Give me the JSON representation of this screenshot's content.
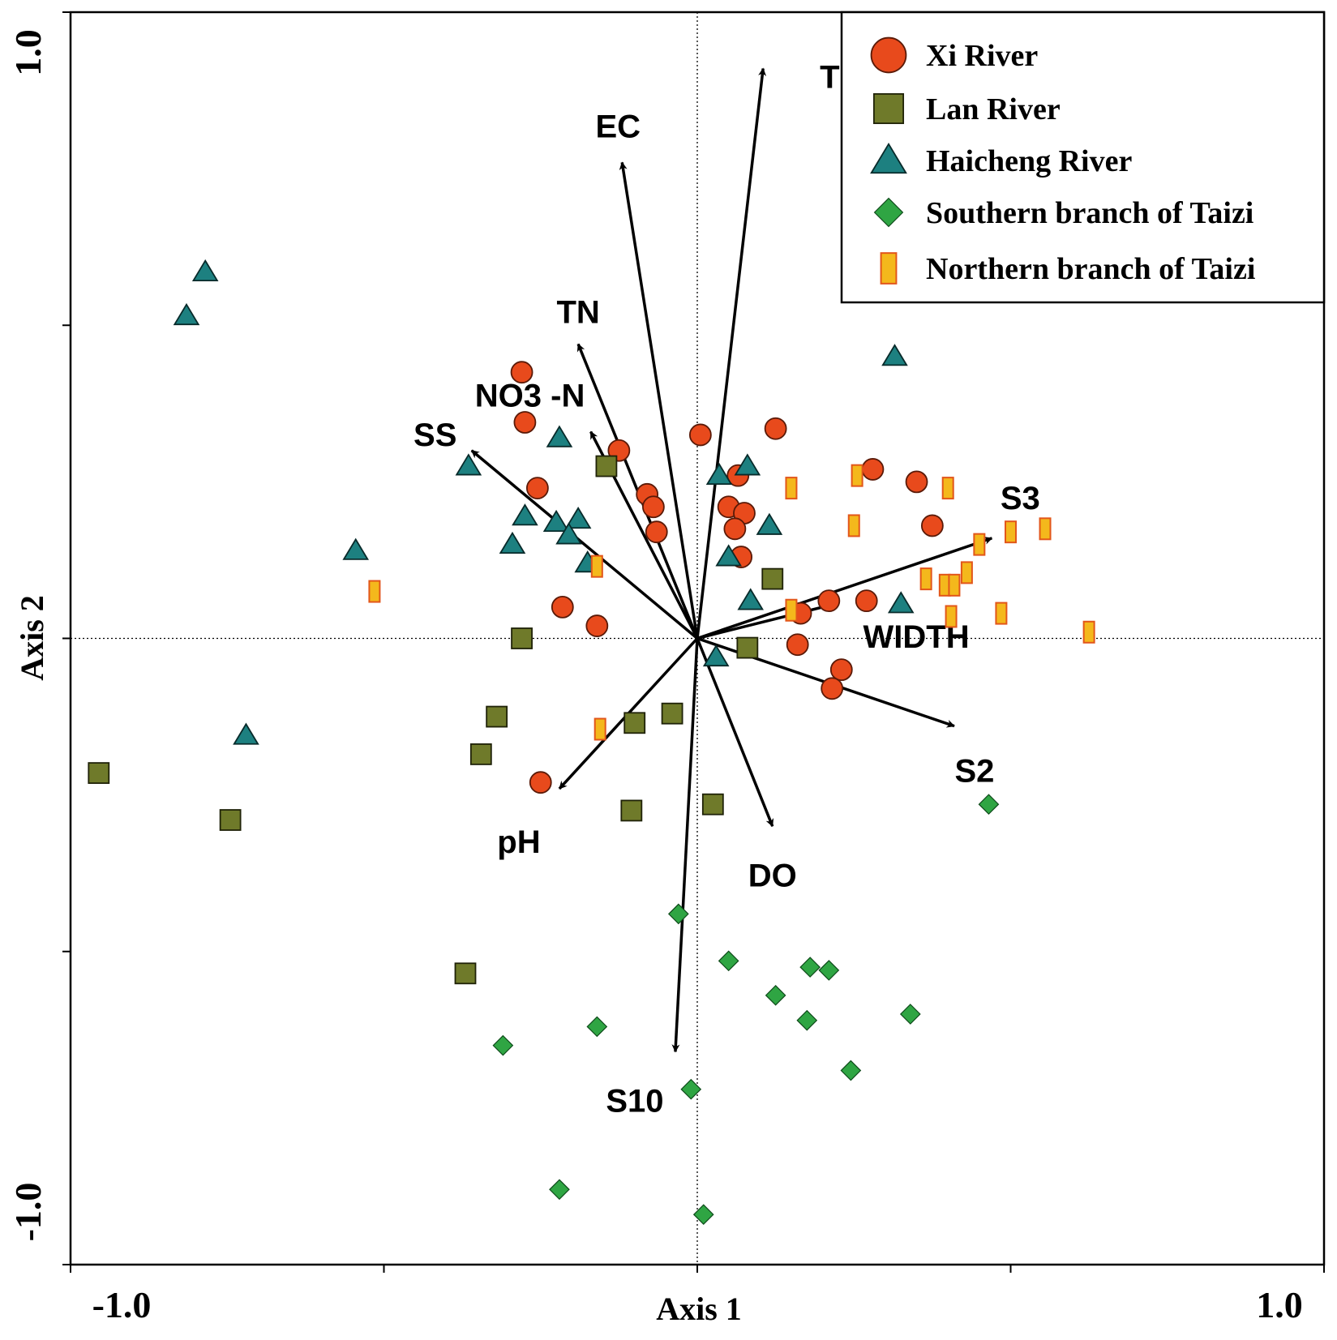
{
  "chart_data": {
    "type": "scatter",
    "subtype": "ordination biplot",
    "xlabel": "Axis 1",
    "ylabel": "Axis 2",
    "xlim": [
      -1.0,
      1.0
    ],
    "ylim": [
      -1.0,
      1.0
    ],
    "xtick_labels": [
      {
        "value": -1.0,
        "label": "-1.0"
      },
      {
        "value": 1.0,
        "label": "1.0"
      }
    ],
    "ytick_labels": [
      {
        "value": 1.0,
        "label": "1.0"
      },
      {
        "value": -1.0,
        "label": "-1.0"
      }
    ],
    "minor_ticks": [
      -0.5,
      0.5
    ],
    "zero_lines": true,
    "legend_position": "top-right",
    "colors": {
      "xi": "#e84a1c",
      "lan": "#6f7a2a",
      "haicheng": "#1d8080",
      "southern": "#2fa543",
      "northern": "#f4b81c",
      "northern_border": "#e2561a",
      "arrow": "#000000"
    },
    "vectors": [
      {
        "name": "T",
        "x": 0.105,
        "y": 0.91
      },
      {
        "name": "EC",
        "x": -0.12,
        "y": 0.76
      },
      {
        "name": "TN",
        "x": -0.19,
        "y": 0.47
      },
      {
        "name": "NO3 -N",
        "x": -0.17,
        "y": 0.33
      },
      {
        "name": "SS",
        "x": -0.36,
        "y": 0.3
      },
      {
        "name": "S3",
        "x": 0.47,
        "y": 0.16
      },
      {
        "name": "WIDTH",
        "x": 0.22,
        "y": 0.055
      },
      {
        "name": "S2",
        "x": 0.41,
        "y": -0.14
      },
      {
        "name": "DO",
        "x": 0.12,
        "y": -0.3
      },
      {
        "name": "pH",
        "x": -0.22,
        "y": -0.24
      },
      {
        "name": "S10",
        "x": -0.035,
        "y": -0.66
      }
    ],
    "series": [
      {
        "name": "Xi River",
        "marker": "circle",
        "points": [
          [
            -0.28,
            0.425
          ],
          [
            -0.275,
            0.345
          ],
          [
            -0.255,
            0.24
          ],
          [
            -0.215,
            0.05
          ],
          [
            -0.16,
            0.02
          ],
          [
            -0.125,
            0.3
          ],
          [
            -0.08,
            0.23
          ],
          [
            -0.07,
            0.21
          ],
          [
            -0.065,
            0.17
          ],
          [
            0.005,
            0.325
          ],
          [
            0.065,
            0.26
          ],
          [
            0.05,
            0.21
          ],
          [
            0.075,
            0.2
          ],
          [
            0.06,
            0.175
          ],
          [
            0.07,
            0.13
          ],
          [
            0.125,
            0.335
          ],
          [
            0.165,
            0.04
          ],
          [
            0.21,
            0.06
          ],
          [
            0.27,
            0.06
          ],
          [
            0.16,
            -0.01
          ],
          [
            0.23,
            -0.05
          ],
          [
            0.215,
            -0.08
          ],
          [
            0.28,
            0.27
          ],
          [
            0.35,
            0.25
          ],
          [
            0.375,
            0.18
          ],
          [
            -0.25,
            -0.23
          ]
        ]
      },
      {
        "name": "Lan River",
        "marker": "square",
        "points": [
          [
            -0.145,
            0.275
          ],
          [
            0.12,
            0.095
          ],
          [
            0.08,
            -0.015
          ],
          [
            -0.28,
            0.0
          ],
          [
            -0.32,
            -0.125
          ],
          [
            -0.345,
            -0.185
          ],
          [
            -0.1,
            -0.135
          ],
          [
            -0.04,
            -0.12
          ],
          [
            -0.105,
            -0.275
          ],
          [
            0.025,
            -0.265
          ],
          [
            -0.37,
            -0.535
          ],
          [
            -0.745,
            -0.29
          ],
          [
            -0.955,
            -0.215
          ]
        ]
      },
      {
        "name": "Haicheng River",
        "marker": "triangle",
        "points": [
          [
            -0.785,
            0.585
          ],
          [
            -0.815,
            0.515
          ],
          [
            -0.545,
            0.14
          ],
          [
            -0.72,
            -0.155
          ],
          [
            -0.365,
            0.275
          ],
          [
            -0.22,
            0.32
          ],
          [
            -0.275,
            0.195
          ],
          [
            -0.295,
            0.15
          ],
          [
            -0.225,
            0.185
          ],
          [
            -0.19,
            0.19
          ],
          [
            -0.205,
            0.165
          ],
          [
            -0.175,
            0.12
          ],
          [
            0.035,
            0.26
          ],
          [
            0.08,
            0.275
          ],
          [
            0.115,
            0.18
          ],
          [
            0.05,
            0.13
          ],
          [
            0.085,
            0.06
          ],
          [
            0.03,
            -0.03
          ],
          [
            0.315,
            0.45
          ],
          [
            0.325,
            0.055
          ]
        ]
      },
      {
        "name": "Southern branch of Taizi",
        "marker": "diamond",
        "points": [
          [
            -0.03,
            -0.44
          ],
          [
            0.05,
            -0.515
          ],
          [
            0.18,
            -0.525
          ],
          [
            0.21,
            -0.53
          ],
          [
            0.125,
            -0.57
          ],
          [
            0.175,
            -0.61
          ],
          [
            0.34,
            -0.6
          ],
          [
            -0.16,
            -0.62
          ],
          [
            -0.31,
            -0.65
          ],
          [
            0.245,
            -0.69
          ],
          [
            -0.01,
            -0.72
          ],
          [
            -0.22,
            -0.88
          ],
          [
            0.01,
            -0.92
          ],
          [
            0.465,
            -0.265
          ]
        ]
      },
      {
        "name": "Northern branch of Taizi",
        "marker": "rect",
        "points": [
          [
            -0.515,
            0.075
          ],
          [
            -0.16,
            0.115
          ],
          [
            -0.155,
            -0.145
          ],
          [
            0.15,
            0.045
          ],
          [
            0.15,
            0.24
          ],
          [
            0.255,
            0.26
          ],
          [
            0.25,
            0.18
          ],
          [
            0.4,
            0.24
          ],
          [
            0.365,
            0.095
          ],
          [
            0.395,
            0.085
          ],
          [
            0.41,
            0.085
          ],
          [
            0.43,
            0.105
          ],
          [
            0.45,
            0.15
          ],
          [
            0.5,
            0.17
          ],
          [
            0.555,
            0.175
          ],
          [
            0.485,
            0.04
          ],
          [
            0.405,
            0.035
          ],
          [
            0.625,
            0.01
          ]
        ]
      }
    ]
  }
}
